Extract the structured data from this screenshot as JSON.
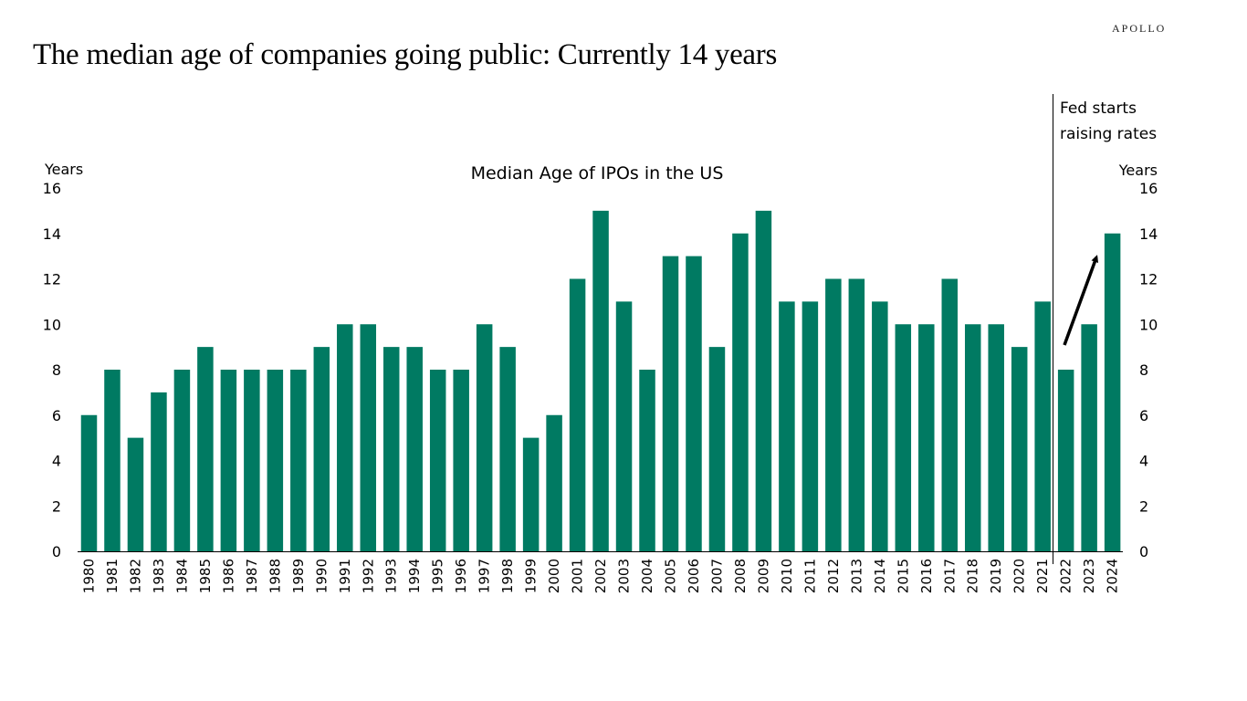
{
  "logo": "APOLLO",
  "title": "The median age of companies going public: Currently 14 years",
  "chart_data": {
    "type": "bar",
    "title": "Median Age of IPOs in the US",
    "ylabel_left": "Years",
    "ylabel_right": "Years",
    "ylim": [
      0,
      16
    ],
    "yticks": [
      0,
      2,
      4,
      6,
      8,
      10,
      12,
      14,
      16
    ],
    "bar_color": "#007A62",
    "categories": [
      "1980",
      "1981",
      "1982",
      "1983",
      "1984",
      "1985",
      "1986",
      "1987",
      "1988",
      "1989",
      "1990",
      "1991",
      "1992",
      "1993",
      "1994",
      "1995",
      "1996",
      "1997",
      "1998",
      "1999",
      "2000",
      "2001",
      "2002",
      "2003",
      "2004",
      "2005",
      "2006",
      "2007",
      "2008",
      "2009",
      "2010",
      "2011",
      "2012",
      "2013",
      "2014",
      "2015",
      "2016",
      "2017",
      "2018",
      "2019",
      "2020",
      "2021",
      "2022",
      "2023",
      "2024"
    ],
    "values": [
      6,
      8,
      5,
      7,
      8,
      9,
      8,
      8,
      8,
      8,
      9,
      10,
      10,
      9,
      9,
      8,
      8,
      10,
      9,
      5,
      6,
      12,
      15,
      11,
      8,
      13,
      13,
      9,
      14,
      15,
      11,
      11,
      12,
      12,
      11,
      10,
      10,
      12,
      10,
      10,
      9,
      11,
      8,
      10,
      14
    ],
    "annotation": {
      "text_line1": "Fed starts",
      "text_line2": "raising rates",
      "at_category": "2022"
    }
  }
}
